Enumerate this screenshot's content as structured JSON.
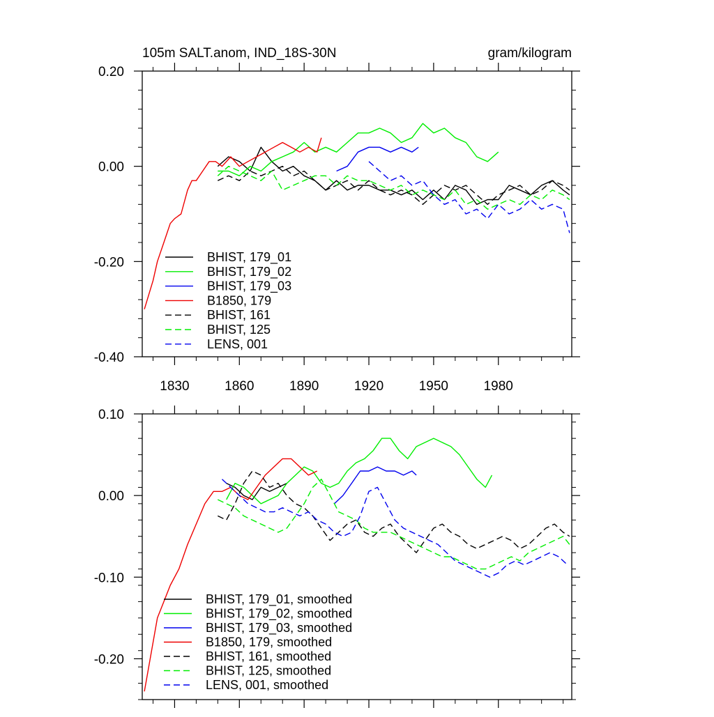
{
  "chart_data": [
    {
      "type": "line",
      "title": "105m SALT.anom, IND_18S-30N",
      "units": "gram/kilogram",
      "xlim": [
        1815,
        2014
      ],
      "ylim": [
        -0.4,
        0.2
      ],
      "x_ticks": [
        1830,
        1860,
        1890,
        1920,
        1950,
        1980
      ],
      "x_tick_labels": [
        "1830",
        "1860",
        "1890",
        "1920",
        "1950",
        "1980"
      ],
      "y_ticks": [
        0.2,
        0.0,
        -0.2,
        -0.4
      ],
      "y_tick_labels": [
        "0.20",
        "0.00",
        "-0.20",
        "-0.40"
      ],
      "grid": false,
      "legend_position": "bottom-left",
      "series": [
        {
          "name": "BHIST, 179_01",
          "color": "#000000",
          "dash": "solid",
          "x": [
            1850,
            1855,
            1860,
            1865,
            1870,
            1875,
            1880,
            1885,
            1890,
            1895,
            1900,
            1905,
            1910,
            1915,
            1920,
            1925,
            1930,
            1935,
            1940,
            1945,
            1950,
            1955,
            1960,
            1965,
            1970,
            1975,
            1980,
            1985,
            1990,
            1995,
            2000,
            2005,
            2010,
            2013
          ],
          "y": [
            0.0,
            0.02,
            0.01,
            -0.01,
            0.04,
            0.01,
            -0.01,
            0.0,
            -0.02,
            -0.03,
            -0.05,
            -0.03,
            -0.05,
            -0.04,
            -0.04,
            -0.05,
            -0.05,
            -0.06,
            -0.05,
            -0.07,
            -0.05,
            -0.07,
            -0.04,
            -0.05,
            -0.08,
            -0.07,
            -0.07,
            -0.04,
            -0.05,
            -0.06,
            -0.04,
            -0.03,
            -0.05,
            -0.06
          ]
        },
        {
          "name": "BHIST, 179_02",
          "color": "#00ee00",
          "dash": "solid",
          "x": [
            1850,
            1855,
            1860,
            1865,
            1870,
            1875,
            1880,
            1885,
            1890,
            1895,
            1900,
            1905,
            1910,
            1915,
            1920,
            1925,
            1930,
            1935,
            1940,
            1945,
            1950,
            1955,
            1960,
            1965,
            1970,
            1975,
            1980
          ],
          "y": [
            -0.01,
            -0.01,
            -0.02,
            0.0,
            -0.01,
            0.01,
            0.02,
            0.03,
            0.05,
            0.03,
            0.04,
            0.03,
            0.05,
            0.07,
            0.07,
            0.08,
            0.07,
            0.05,
            0.06,
            0.09,
            0.07,
            0.08,
            0.06,
            0.05,
            0.02,
            0.01,
            0.03
          ]
        },
        {
          "name": "BHIST, 179_03",
          "color": "#0000ee",
          "dash": "solid",
          "x": [
            1905,
            1910,
            1915,
            1920,
            1925,
            1930,
            1935,
            1940,
            1943
          ],
          "y": [
            -0.01,
            0.0,
            0.03,
            0.04,
            0.04,
            0.03,
            0.04,
            0.03,
            0.04
          ]
        },
        {
          "name": "B1850, 179",
          "color": "#ee0000",
          "dash": "solid",
          "x": [
            1816,
            1818,
            1820,
            1822,
            1825,
            1828,
            1830,
            1833,
            1836,
            1838,
            1840,
            1843,
            1846,
            1849,
            1852,
            1856,
            1860,
            1864,
            1868,
            1872,
            1876,
            1880,
            1884,
            1888,
            1892,
            1896,
            1898
          ],
          "y": [
            -0.3,
            -0.27,
            -0.24,
            -0.2,
            -0.16,
            -0.12,
            -0.11,
            -0.1,
            -0.05,
            -0.03,
            -0.03,
            -0.01,
            0.01,
            0.01,
            0.0,
            0.02,
            0.0,
            0.01,
            0.02,
            0.03,
            0.04,
            0.05,
            0.04,
            0.03,
            0.04,
            0.03,
            0.06
          ]
        },
        {
          "name": "BHIST, 161",
          "color": "#000000",
          "dash": "dashed",
          "x": [
            1850,
            1855,
            1860,
            1865,
            1870,
            1875,
            1880,
            1885,
            1890,
            1895,
            1900,
            1905,
            1910,
            1915,
            1920,
            1925,
            1930,
            1935,
            1940,
            1945,
            1950,
            1955,
            1960,
            1965,
            1970,
            1975,
            1980,
            1985,
            1990,
            1995,
            2000,
            2005,
            2010,
            2013
          ],
          "y": [
            -0.03,
            -0.02,
            -0.03,
            -0.01,
            -0.02,
            -0.01,
            0.0,
            -0.02,
            -0.01,
            -0.03,
            -0.05,
            -0.04,
            -0.03,
            -0.05,
            -0.03,
            -0.05,
            -0.06,
            -0.05,
            -0.06,
            -0.08,
            -0.06,
            -0.04,
            -0.05,
            -0.04,
            -0.06,
            -0.08,
            -0.06,
            -0.05,
            -0.04,
            -0.06,
            -0.05,
            -0.03,
            -0.04,
            -0.05
          ]
        },
        {
          "name": "BHIST, 125",
          "color": "#00ee00",
          "dash": "dashed",
          "x": [
            1850,
            1855,
            1860,
            1865,
            1870,
            1875,
            1880,
            1885,
            1890,
            1895,
            1900,
            1905,
            1910,
            1915,
            1920,
            1925,
            1930,
            1935,
            1940,
            1945,
            1950,
            1955,
            1960,
            1965,
            1970,
            1975,
            1980,
            1985,
            1990,
            1995,
            2000,
            2005,
            2010,
            2013
          ],
          "y": [
            -0.02,
            0.0,
            -0.01,
            -0.02,
            -0.03,
            -0.01,
            -0.05,
            -0.04,
            -0.03,
            -0.02,
            -0.02,
            -0.04,
            -0.02,
            -0.03,
            -0.03,
            -0.04,
            -0.05,
            -0.04,
            -0.06,
            -0.05,
            -0.06,
            -0.07,
            -0.05,
            -0.08,
            -0.07,
            -0.09,
            -0.08,
            -0.07,
            -0.08,
            -0.06,
            -0.07,
            -0.05,
            -0.06,
            -0.07
          ]
        },
        {
          "name": "LENS, 001",
          "color": "#0000ee",
          "dash": "dashed",
          "x": [
            1920,
            1925,
            1930,
            1935,
            1940,
            1945,
            1950,
            1955,
            1960,
            1965,
            1970,
            1975,
            1980,
            1985,
            1990,
            1995,
            2000,
            2005,
            2010,
            2013
          ],
          "y": [
            0.01,
            -0.01,
            -0.03,
            -0.02,
            -0.04,
            -0.03,
            -0.06,
            -0.08,
            -0.07,
            -0.1,
            -0.09,
            -0.11,
            -0.08,
            -0.1,
            -0.09,
            -0.07,
            -0.09,
            -0.08,
            -0.09,
            -0.14
          ]
        }
      ]
    },
    {
      "type": "line",
      "title": "",
      "xlim": [
        1815,
        2014
      ],
      "ylim": [
        -0.25,
        0.1
      ],
      "x_ticks": [
        1830,
        1860,
        1890,
        1920,
        1950,
        1980
      ],
      "x_tick_labels": [],
      "y_ticks": [
        0.1,
        0.0,
        -0.1,
        -0.2
      ],
      "y_tick_labels": [
        "0.10",
        "0.00",
        "-0.10",
        "-0.20"
      ],
      "grid": false,
      "legend_position": "bottom-left",
      "series": [
        {
          "name": "BHIST, 179_01, smoothed",
          "color": "#000000",
          "dash": "solid",
          "x": [
            1854,
            1858,
            1862,
            1866,
            1870,
            1874,
            1878,
            1882
          ],
          "y": [
            0.015,
            0.01,
            0.0,
            -0.005,
            0.01,
            0.005,
            0.01,
            0.015
          ]
        },
        {
          "name": "BHIST, 179_02, smoothed",
          "color": "#00ee00",
          "dash": "solid",
          "x": [
            1854,
            1858,
            1862,
            1866,
            1870,
            1874,
            1878,
            1882,
            1886,
            1890,
            1894,
            1898,
            1902,
            1906,
            1910,
            1914,
            1918,
            1922,
            1926,
            1930,
            1934,
            1938,
            1942,
            1946,
            1950,
            1954,
            1958,
            1962,
            1966,
            1970,
            1974,
            1977
          ],
          "y": [
            -0.005,
            0.015,
            0.01,
            0.0,
            -0.01,
            -0.005,
            0.0,
            0.015,
            0.025,
            0.035,
            0.03,
            0.015,
            0.01,
            0.015,
            0.03,
            0.04,
            0.045,
            0.055,
            0.07,
            0.07,
            0.055,
            0.045,
            0.06,
            0.065,
            0.07,
            0.065,
            0.06,
            0.05,
            0.035,
            0.02,
            0.01,
            0.025
          ]
        },
        {
          "name": "BHIST, 179_03, smoothed",
          "color": "#0000ee",
          "dash": "solid",
          "x": [
            1904,
            1908,
            1912,
            1916,
            1920,
            1924,
            1928,
            1932,
            1936,
            1940,
            1942
          ],
          "y": [
            -0.01,
            0.0,
            0.015,
            0.03,
            0.03,
            0.035,
            0.03,
            0.03,
            0.025,
            0.03,
            0.025
          ]
        },
        {
          "name": "B1850, 179, smoothed",
          "color": "#ee0000",
          "dash": "solid",
          "x": [
            1816,
            1818,
            1820,
            1822,
            1825,
            1828,
            1832,
            1836,
            1840,
            1844,
            1848,
            1852,
            1856,
            1860,
            1864,
            1868,
            1872,
            1876,
            1880,
            1884,
            1888,
            1892,
            1896
          ],
          "y": [
            -0.24,
            -0.21,
            -0.18,
            -0.15,
            -0.13,
            -0.11,
            -0.09,
            -0.06,
            -0.035,
            -0.01,
            0.005,
            0.005,
            0.01,
            0.0,
            -0.005,
            0.01,
            0.025,
            0.035,
            0.045,
            0.045,
            0.035,
            0.025,
            0.03
          ]
        },
        {
          "name": "BHIST, 161, smoothed",
          "color": "#000000",
          "dash": "dashed",
          "x": [
            1850,
            1854,
            1858,
            1862,
            1866,
            1870,
            1874,
            1878,
            1882,
            1886,
            1890,
            1894,
            1898,
            1902,
            1906,
            1910,
            1914,
            1918,
            1922,
            1926,
            1930,
            1934,
            1938,
            1942,
            1946,
            1950,
            1954,
            1958,
            1962,
            1966,
            1970,
            1974,
            1978,
            1982,
            1986,
            1990,
            1994,
            1998,
            2002,
            2006,
            2010,
            2013
          ],
          "y": [
            -0.025,
            -0.03,
            -0.01,
            0.015,
            0.03,
            0.025,
            0.01,
            0.015,
            0.0,
            -0.01,
            -0.015,
            -0.025,
            -0.04,
            -0.055,
            -0.045,
            -0.035,
            -0.03,
            -0.045,
            -0.05,
            -0.04,
            -0.035,
            -0.05,
            -0.06,
            -0.07,
            -0.055,
            -0.04,
            -0.035,
            -0.045,
            -0.05,
            -0.06,
            -0.065,
            -0.06,
            -0.055,
            -0.05,
            -0.055,
            -0.065,
            -0.06,
            -0.05,
            -0.04,
            -0.035,
            -0.045,
            -0.05
          ]
        },
        {
          "name": "BHIST, 125, smoothed",
          "color": "#00ee00",
          "dash": "dashed",
          "x": [
            1850,
            1854,
            1858,
            1862,
            1866,
            1870,
            1874,
            1878,
            1882,
            1886,
            1890,
            1894,
            1898,
            1902,
            1906,
            1910,
            1914,
            1918,
            1922,
            1926,
            1930,
            1934,
            1938,
            1942,
            1946,
            1950,
            1954,
            1958,
            1962,
            1966,
            1970,
            1974,
            1978,
            1982,
            1986,
            1990,
            1994,
            1998,
            2002,
            2006,
            2010,
            2013
          ],
          "y": [
            -0.005,
            -0.01,
            -0.015,
            -0.025,
            -0.03,
            -0.035,
            -0.04,
            -0.045,
            -0.04,
            -0.025,
            -0.01,
            0.01,
            0.02,
            0.0,
            -0.02,
            -0.025,
            -0.03,
            -0.04,
            -0.045,
            -0.045,
            -0.045,
            -0.05,
            -0.055,
            -0.06,
            -0.065,
            -0.07,
            -0.075,
            -0.075,
            -0.08,
            -0.085,
            -0.09,
            -0.09,
            -0.085,
            -0.08,
            -0.075,
            -0.08,
            -0.07,
            -0.065,
            -0.06,
            -0.055,
            -0.05,
            -0.06
          ]
        },
        {
          "name": "LENS, 001, smoothed",
          "color": "#0000ee",
          "dash": "dashed",
          "x": [
            1852,
            1856,
            1860,
            1864,
            1868,
            1872,
            1876,
            1880,
            1884,
            1888,
            1892,
            1896,
            1900,
            1904,
            1908,
            1912,
            1916,
            1920,
            1924,
            1928,
            1932,
            1936,
            1940,
            1944,
            1948,
            1952,
            1956,
            1960,
            1964,
            1968,
            1972,
            1976,
            1980,
            1984,
            1988,
            1992,
            1996,
            2000,
            2004,
            2008,
            2012
          ],
          "y": [
            0.02,
            0.01,
            0.0,
            -0.01,
            -0.015,
            -0.02,
            -0.02,
            -0.015,
            -0.02,
            -0.025,
            -0.02,
            -0.03,
            -0.035,
            -0.045,
            -0.05,
            -0.045,
            -0.025,
            0.005,
            0.01,
            -0.01,
            -0.03,
            -0.04,
            -0.045,
            -0.05,
            -0.055,
            -0.06,
            -0.07,
            -0.08,
            -0.085,
            -0.09,
            -0.095,
            -0.1,
            -0.095,
            -0.085,
            -0.08,
            -0.085,
            -0.08,
            -0.075,
            -0.07,
            -0.075,
            -0.085
          ]
        }
      ]
    }
  ]
}
